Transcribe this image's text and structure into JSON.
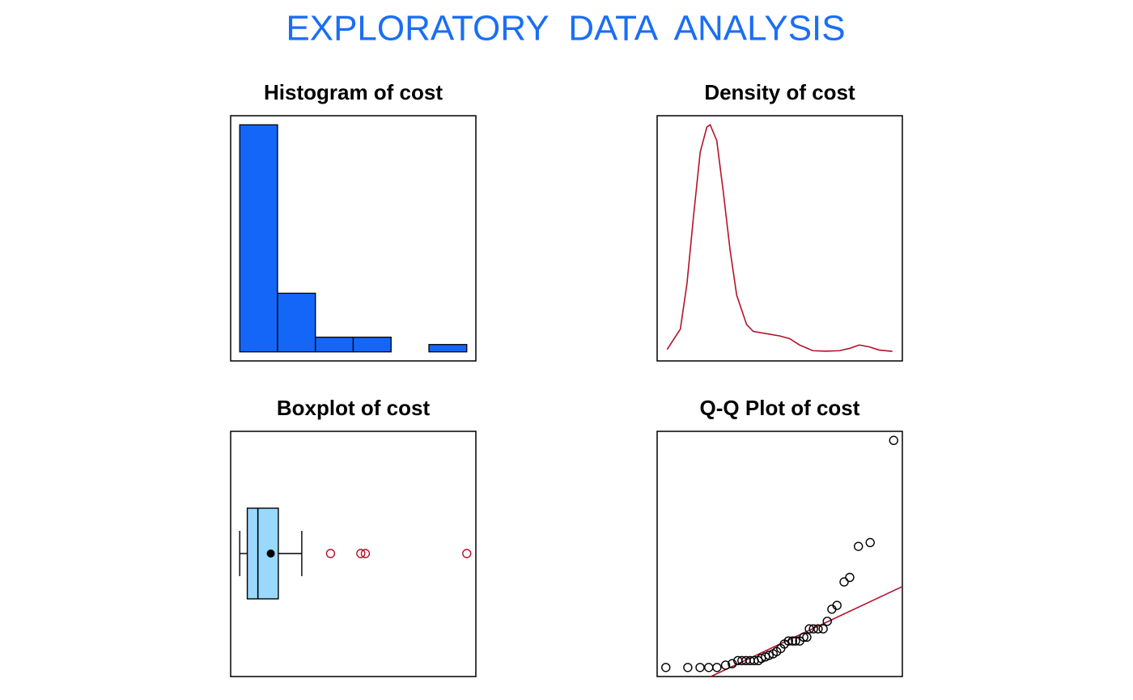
{
  "title": "EXPLORATORY  DATA  ANALYSIS",
  "chart_data": [
    {
      "type": "histogram",
      "title": "Histogram of cost",
      "bins": [
        0,
        5,
        10,
        15,
        20,
        25,
        30
      ],
      "values": [
        31,
        8,
        2,
        2,
        0,
        1
      ],
      "color": "#1466f8",
      "xlim": [
        -1.2,
        31.2
      ],
      "ylim": [
        -1.24,
        32.24
      ]
    },
    {
      "type": "density",
      "title": "Density of cost",
      "color": "#b5122a",
      "x": [
        -2,
        0,
        1,
        2,
        3,
        4,
        4.5,
        5.5,
        6.5,
        7.5,
        8.5,
        10,
        11,
        13,
        15,
        16.5,
        18,
        20,
        22,
        24,
        25.5,
        27,
        28.5,
        30,
        32
      ],
      "values": [
        0.001,
        0.01,
        0.03,
        0.06,
        0.088,
        0.099,
        0.1,
        0.093,
        0.07,
        0.045,
        0.025,
        0.012,
        0.009,
        0.008,
        0.007,
        0.0058,
        0.003,
        0.0005,
        0.0003,
        0.0005,
        0.0015,
        0.003,
        0.0022,
        0.0008,
        0.0002
      ],
      "xlim": [
        -3.5,
        33.5
      ],
      "ylim": [
        -0.004,
        0.104
      ]
    },
    {
      "type": "box",
      "title": "Boxplot of cost",
      "color": "#99d8ff",
      "outlier_color": "#b5122a",
      "min": 0,
      "q1": 1,
      "median": 2.4,
      "mean": 4.1,
      "q3": 5.1,
      "max": 8.2,
      "outliers": [
        12,
        16,
        16.6,
        30
      ],
      "xlim": [
        -1.2,
        31.2
      ]
    },
    {
      "type": "qq",
      "title": "Q-Q Plot of cost",
      "line_color": "#b5122a",
      "x": [
        -2.23,
        -1.8,
        -1.56,
        -1.39,
        -1.23,
        -1.06,
        -0.93,
        -0.82,
        -0.74,
        -0.66,
        -0.58,
        -0.5,
        -0.42,
        -0.36,
        -0.28,
        -0.21,
        -0.13,
        -0.06,
        0.02,
        0.09,
        0.17,
        0.25,
        0.31,
        0.39,
        0.47,
        0.53,
        0.58,
        0.66,
        0.75,
        0.85,
        0.93,
        1.02,
        1.12,
        1.26,
        1.37,
        1.54,
        1.77,
        2.23
      ],
      "values": [
        0,
        0,
        0,
        0,
        0,
        0.3,
        0.5,
        0.9,
        0.9,
        0.9,
        0.9,
        0.9,
        0.9,
        1.2,
        1.4,
        1.6,
        1.8,
        2.1,
        2.5,
        3.1,
        3.5,
        3.5,
        3.5,
        3.5,
        4,
        4,
        5.1,
        5.1,
        5.1,
        5.1,
        6.1,
        7.7,
        8.2,
        11.3,
        11.9,
        16,
        16.5,
        30
      ],
      "qq_line": {
        "intercept": 3.08,
        "slope": 3.17
      },
      "xlim": [
        -2.4,
        2.4
      ],
      "ylim": [
        -1.2,
        31.2
      ]
    }
  ]
}
